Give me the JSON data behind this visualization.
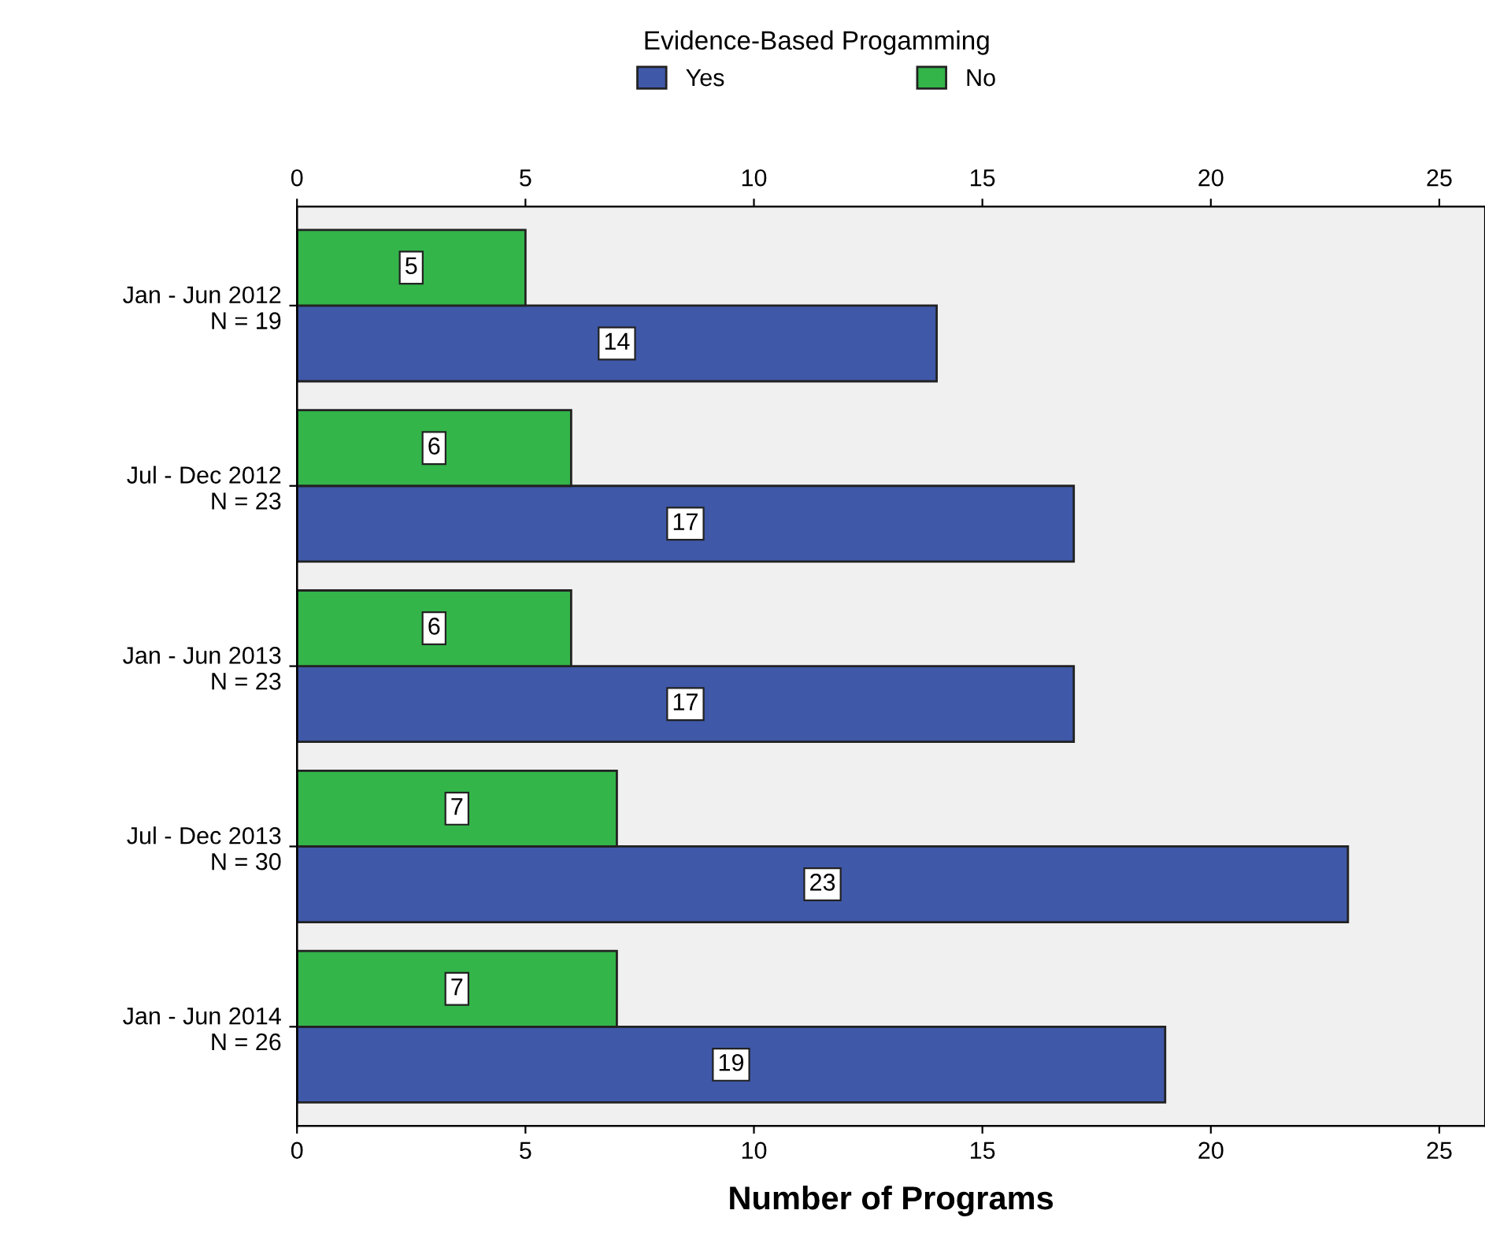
{
  "chart_data": {
    "type": "bar",
    "orientation": "horizontal",
    "legend_title": "Evidence-Based Progamming",
    "xlabel": "Number of Programs",
    "categories": [
      "Jan - Jun 2012\nN = 19",
      "Jul - Dec 2012\nN = 23",
      "Jan - Jun 2013\nN = 23",
      "Jul - Dec 2013\nN = 30",
      "Jan - Jun 2014\nN = 26"
    ],
    "series": [
      {
        "name": "Yes",
        "color": "#3f58a8",
        "values": [
          14,
          17,
          17,
          23,
          19
        ]
      },
      {
        "name": "No",
        "color": "#33b54a",
        "values": [
          5,
          6,
          6,
          7,
          7
        ]
      }
    ],
    "xlim": [
      0,
      26
    ],
    "xticks": [
      0,
      5,
      10,
      15,
      20,
      25
    ],
    "x2lim": [
      0,
      26
    ],
    "x2ticks": [
      0,
      5,
      10,
      15,
      20,
      25
    ],
    "data_labels": true,
    "grid": false,
    "legend": "top"
  }
}
